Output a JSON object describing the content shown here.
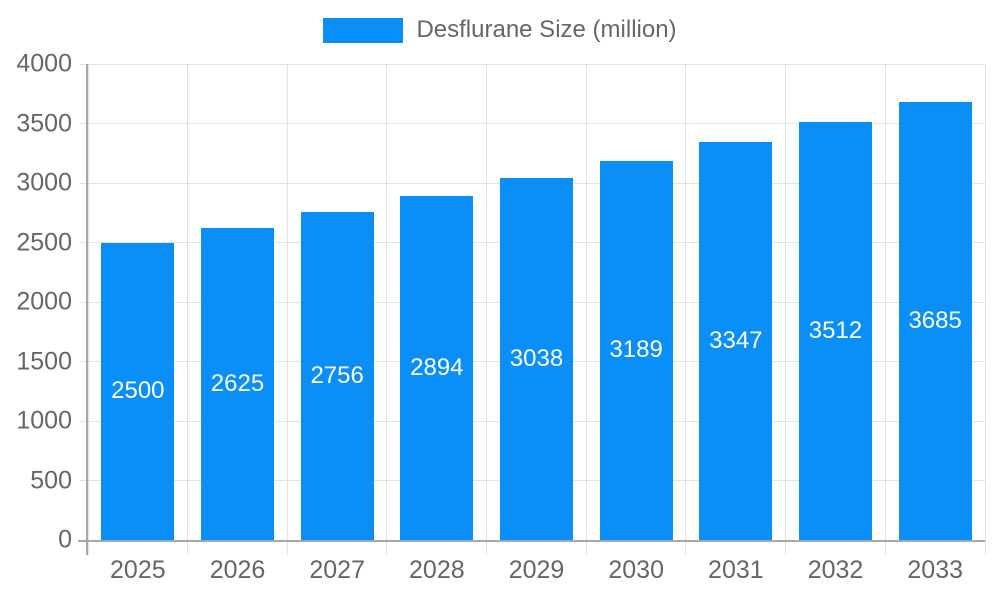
{
  "page": {
    "background_color": "#ffffff"
  },
  "legend": {
    "label": "Desflurane Size (million)",
    "swatch_color": "#0a8ef7",
    "text_color": "#666666",
    "position": "top-center"
  },
  "chart_data": {
    "type": "bar",
    "title": "Desflurane Size (million)",
    "series_name": "Desflurane Size (million)",
    "categories": [
      "2025",
      "2026",
      "2027",
      "2028",
      "2029",
      "2030",
      "2031",
      "2032",
      "2033"
    ],
    "values": [
      2500,
      2625,
      2756,
      2894,
      3038,
      3189,
      3347,
      3512,
      3685
    ],
    "xlabel": "",
    "ylabel": "",
    "ylim": [
      0,
      4000
    ],
    "ytick_step": 500,
    "yticks": [
      0,
      500,
      1000,
      1500,
      2000,
      2500,
      3000,
      3500,
      4000
    ],
    "grid": true,
    "legend_position": "top-center",
    "bar_color": "#0a8ef7",
    "bar_label_color": "#ffffff",
    "bar_labels_inside": true,
    "grid_color": "#e2e2e2",
    "axis_color": "#a7a7a7",
    "tick_label_color": "#666666",
    "bar_width_fraction": 0.73
  }
}
